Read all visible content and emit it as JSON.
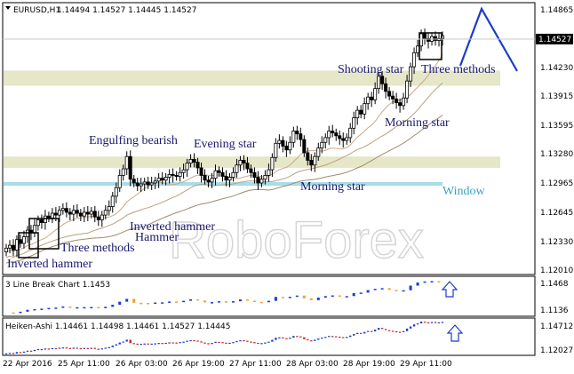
{
  "header": {
    "symbol": "EURUSD,H1",
    "ohlc": "1.14494 1.14527 1.14445 1.14527"
  },
  "watermark": "RoboForex",
  "price_axis": {
    "ticks": [
      "1.14865",
      "1.14230",
      "1.13915",
      "1.13595",
      "1.13280",
      "1.12965",
      "1.12645",
      "1.12330",
      "1.12010"
    ],
    "current_price": "1.14527"
  },
  "time_axis": {
    "labels": [
      "22 Apr 2016",
      "25 Apr 11:00",
      "26 Apr 03:00",
      "26 Apr 19:00",
      "27 Apr 11:00",
      "28 Apr 03:00",
      "28 Apr 19:00",
      "29 Apr 11:00"
    ]
  },
  "annotations": {
    "inverted_hammer_1": "Inverted hammer",
    "three_methods_1": "Three methods",
    "inverted_hammer_2a": "Inverted hammer",
    "inverted_hammer_2b": "Hammer",
    "engulfing_bearish": "Engulfing bearish",
    "evening_star": "Evening star",
    "morning_star_1": "Morning star",
    "window": "Window",
    "morning_star_2": "Morning star",
    "shooting_star": "Shooting star",
    "three_methods_2": "Three methods"
  },
  "panel1": {
    "title": "3 Line Break Chart 1.1453",
    "ticks": [
      "1.1468",
      "1.1136"
    ]
  },
  "panel2": {
    "title": "Heiken-Ashi 1.14461 1.14498 1.14461 1.14527 1.14445",
    "ticks": [
      "1.14712",
      "1.12027"
    ]
  },
  "colors": {
    "candle": "#000000",
    "resistance_zone": "#e6e6c8",
    "window_zone": "#a8dde8",
    "annotation_text": "#1a1a6e",
    "window_text": "#3aa0c8",
    "arrow": "#1a3ccc",
    "bull_block": "#1a3ccc",
    "bear_block": "#f0a030",
    "ha_bear": "#cc2222"
  },
  "chart_data": {
    "type": "candlestick",
    "symbol": "EURUSD",
    "timeframe": "H1",
    "ylim": [
      1.1201,
      1.1487
    ],
    "zones": [
      {
        "name": "resistance",
        "from": 1.14,
        "to": 1.1416
      },
      {
        "name": "support",
        "from": 1.1313,
        "to": 1.1325
      },
      {
        "name": "window",
        "from": 1.1294,
        "to": 1.1298
      }
    ],
    "closes": [
      1.1228,
      1.1231,
      1.1226,
      1.1237,
      1.1233,
      1.124,
      1.1247,
      1.1244,
      1.1252,
      1.1258,
      1.1255,
      1.1262,
      1.126,
      1.1265,
      1.1263,
      1.1268,
      1.127,
      1.1266,
      1.1264,
      1.1268,
      1.1265,
      1.1262,
      1.1266,
      1.1264,
      1.1267,
      1.1261,
      1.1258,
      1.1263,
      1.1268,
      1.1272,
      1.1283,
      1.1292,
      1.1305,
      1.1312,
      1.1325,
      1.1301,
      1.1297,
      1.1294,
      1.1296,
      1.1298,
      1.1295,
      1.1297,
      1.1299,
      1.1302,
      1.13,
      1.1303,
      1.1306,
      1.1305,
      1.1304,
      1.1308,
      1.1311,
      1.1318,
      1.1322,
      1.1319,
      1.1313,
      1.1305,
      1.13,
      1.1298,
      1.1302,
      1.131,
      1.1308,
      1.1304,
      1.13,
      1.1303,
      1.1308,
      1.1316,
      1.1321,
      1.1318,
      1.1312,
      1.1308,
      1.1303,
      1.1297,
      1.1301,
      1.1305,
      1.1311,
      1.1324,
      1.1339,
      1.1342,
      1.1336,
      1.1332,
      1.134,
      1.1352,
      1.1349,
      1.1343,
      1.1329,
      1.1321,
      1.1316,
      1.1325,
      1.1334,
      1.134,
      1.1345,
      1.1352,
      1.135,
      1.1347,
      1.1344,
      1.1342,
      1.1345,
      1.1355,
      1.1366,
      1.1374,
      1.137,
      1.1381,
      1.1388,
      1.1385,
      1.1397,
      1.141,
      1.1402,
      1.1394,
      1.1389,
      1.1386,
      1.1382,
      1.1379,
      1.1387,
      1.1405,
      1.142,
      1.1435,
      1.1442,
      1.1455,
      1.145,
      1.1447,
      1.1452,
      1.1448,
      1.145,
      1.1453
    ]
  }
}
